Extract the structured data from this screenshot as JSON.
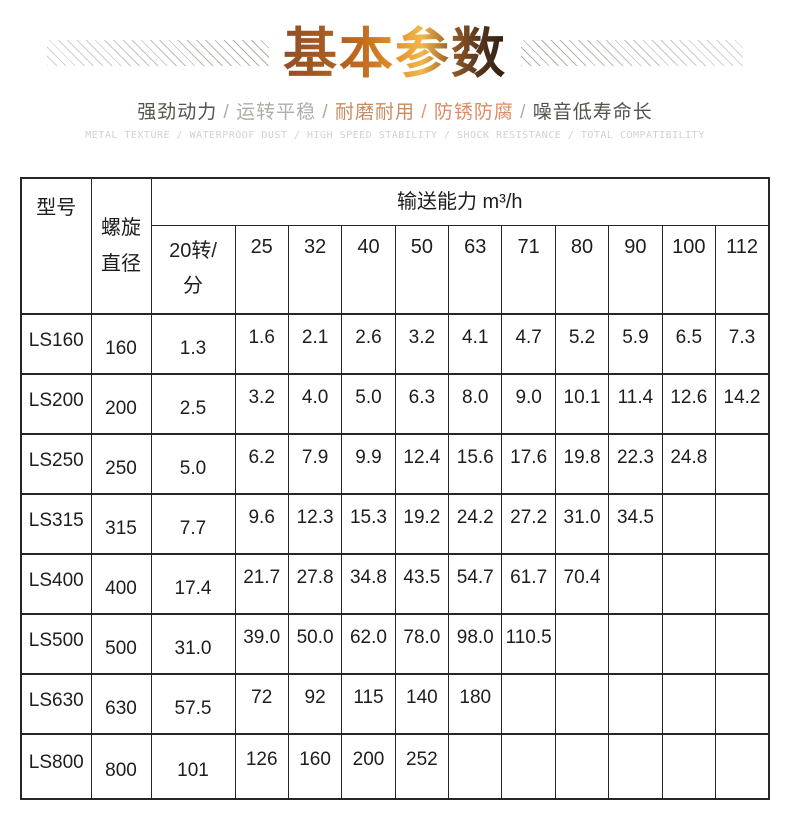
{
  "header": {
    "title": "基本参数",
    "subtitle_segments": [
      {
        "text": "强劲动力",
        "color": "#58524b"
      },
      {
        "text": " / ",
        "color": "#b2aca6"
      },
      {
        "text": "运转平稳",
        "color": "#b2aca6"
      },
      {
        "text": " / ",
        "color": "#c0a18a"
      },
      {
        "text": "耐磨耐用",
        "color": "#c68d62"
      },
      {
        "text": " / ",
        "color": "#dd9a74"
      },
      {
        "text": "防锈防腐",
        "color": "#e18a64"
      },
      {
        "text": " / ",
        "color": "#b2aca6"
      },
      {
        "text": "噪音低寿命长",
        "color": "#57524c"
      }
    ],
    "subtitle_en": "METAL TEXTURE / WATERPROOF DUST / HIGH SPEED STABILITY / SHOCK RESISTANCE / TOTAL COMPATIBILITY"
  },
  "table": {
    "col_model": "型号",
    "col_diameter": "螺旋直径",
    "capacity_header": "输送能力 m³/h",
    "speed_cols": [
      "20转/分",
      "25",
      "32",
      "40",
      "50",
      "63",
      "71",
      "80",
      "90",
      "100",
      "112"
    ],
    "rows": [
      {
        "model": "LS160",
        "diameter": "160",
        "values": [
          "1.3",
          "1.6",
          "2.1",
          "2.6",
          "3.2",
          "4.1",
          "4.7",
          "5.2",
          "5.9",
          "6.5",
          "7.3"
        ]
      },
      {
        "model": "LS200",
        "diameter": "200",
        "values": [
          "2.5",
          "3.2",
          "4.0",
          "5.0",
          "6.3",
          "8.0",
          "9.0",
          "10.1",
          "11.4",
          "12.6",
          "14.2"
        ]
      },
      {
        "model": "LS250",
        "diameter": "250",
        "values": [
          "5.0",
          "6.2",
          "7.9",
          "9.9",
          "12.4",
          "15.6",
          "17.6",
          "19.8",
          "22.3",
          "24.8",
          ""
        ]
      },
      {
        "model": "LS315",
        "diameter": "315",
        "values": [
          "7.7",
          "9.6",
          "12.3",
          "15.3",
          "19.2",
          "24.2",
          "27.2",
          "31.0",
          "34.5",
          "",
          ""
        ]
      },
      {
        "model": "LS400",
        "diameter": "400",
        "values": [
          "17.4",
          "21.7",
          "27.8",
          "34.8",
          "43.5",
          "54.7",
          "61.7",
          "70.4",
          "",
          "",
          ""
        ]
      },
      {
        "model": "LS500",
        "diameter": "500",
        "values": [
          "31.0",
          "39.0",
          "50.0",
          "62.0",
          "78.0",
          "98.0",
          "110.5",
          "",
          "",
          "",
          ""
        ]
      },
      {
        "model": "LS630",
        "diameter": "630",
        "values": [
          "57.5",
          "72",
          "92",
          "115",
          "140",
          "180",
          "",
          "",
          "",
          "",
          ""
        ]
      },
      {
        "model": "LS800",
        "diameter": "800",
        "values": [
          "101",
          "126",
          "160",
          "200",
          "252",
          "",
          "",
          "",
          "",
          "",
          ""
        ]
      }
    ]
  },
  "colors": {
    "title_gradient_start": "#8f4e27",
    "title_gradient_gold": "#f2b84a",
    "title_gradient_end": "#2c1c12",
    "table_border": "#262626",
    "table_text": "#1d1d1d",
    "hatch_line": "#a8a29c",
    "subtitle_en_text": "#d6d0ca"
  }
}
